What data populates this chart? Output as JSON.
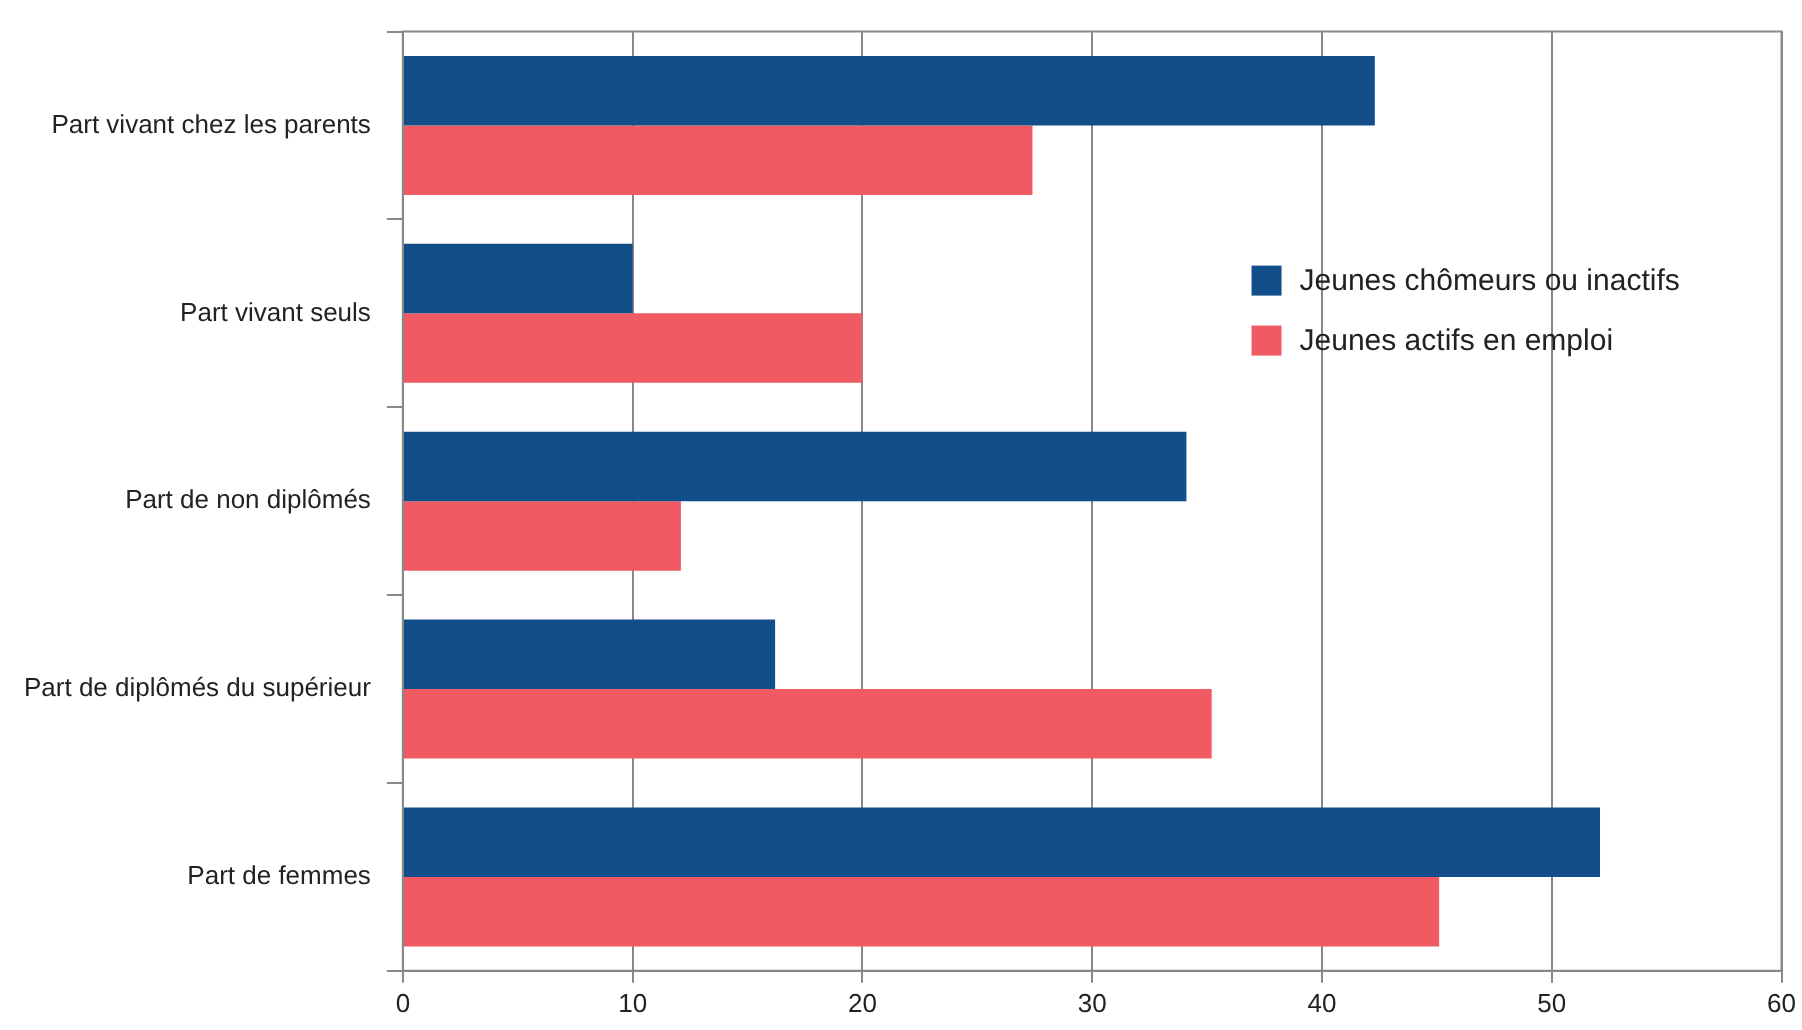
{
  "chart_data": {
    "type": "bar",
    "orientation": "horizontal",
    "categories": [
      "Part vivant chez les parents",
      "Part vivant seuls",
      "Part de non diplômés",
      "Part de diplômés du supérieur",
      "Part de femmes"
    ],
    "series": [
      {
        "name": "Jeunes chômeurs ou inactifs",
        "color": "#124e8a",
        "values": [
          42.3,
          10.0,
          34.1,
          16.2,
          52.1
        ]
      },
      {
        "name": "Jeunes actifs en emploi",
        "color": "#f05a63",
        "values": [
          27.4,
          20.0,
          12.1,
          35.2,
          45.1
        ]
      }
    ],
    "xlim": [
      0,
      60
    ],
    "xticks": [
      0,
      10,
      20,
      30,
      40,
      50,
      60
    ],
    "grid": "x",
    "legend": "top right"
  }
}
